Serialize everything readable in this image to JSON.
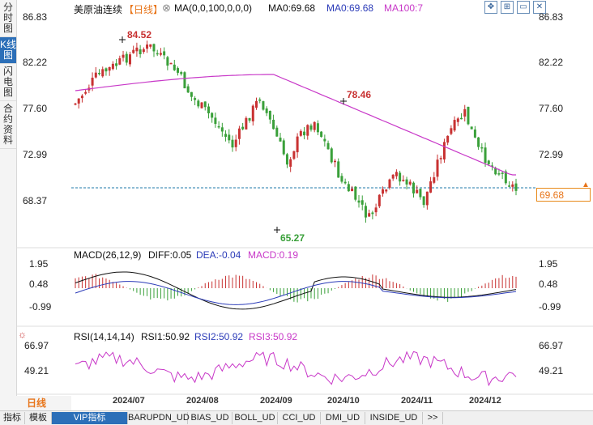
{
  "sidebar": {
    "tabs": [
      {
        "label": "分时图",
        "active": false
      },
      {
        "label": "K线图",
        "active": true
      },
      {
        "label": "闪电图",
        "active": false
      },
      {
        "label": "合约资料",
        "active": false
      }
    ]
  },
  "header": {
    "title": "美原油连续",
    "period_tag": "【日线】",
    "ma_params": "MA(0,0,100,0,0,0)",
    "ma0_a": "MA0:69.68",
    "ma0_b": "MA0:69.68",
    "ma100": "MA100:7"
  },
  "controls": [
    "expand-icon",
    "grid-icon",
    "window-icon",
    "close-icon"
  ],
  "price_axis": {
    "labels": [
      "86.83",
      "82.22",
      "77.60",
      "72.99",
      "68.37"
    ],
    "right_labels": [
      "86.83",
      "82.22",
      "77.60",
      "72.99"
    ],
    "current": "69.68"
  },
  "annotations": {
    "high": "84.52",
    "mid_high": "78.46",
    "low": "65.27"
  },
  "macd": {
    "title": "MACD(26,12,9)",
    "diff": "DIFF:0.05",
    "dea": "DEA:-0.04",
    "macd": "MACD:0.19",
    "labels": [
      "1.95",
      "0.48",
      "-0.99"
    ]
  },
  "rsi": {
    "title": "RSI(14,14,14)",
    "rsi1": "RSI1:50.92",
    "rsi2": "RSI2:50.92",
    "rsi3": "RSI3:50.92",
    "labels": [
      "66.97",
      "49.21"
    ]
  },
  "x_axis": [
    "2024/07",
    "2024/08",
    "2024/09",
    "2024/10",
    "2024/11",
    "2024/12"
  ],
  "period_label": "日线",
  "bottom_tabs": [
    "指标",
    "模板",
    "VIP指标",
    "BARUPDN_UD",
    "BIAS_UD",
    "BOLL_UD",
    "CCI_UD",
    "DMI_UD",
    "INSIDE_UD",
    ">>"
  ],
  "colors": {
    "up": "#c83232",
    "down": "#3aa03a",
    "ma": "#c838c8",
    "diff": "#111111",
    "dea": "#2b3bb8",
    "accent": "#2c6fb8"
  }
}
